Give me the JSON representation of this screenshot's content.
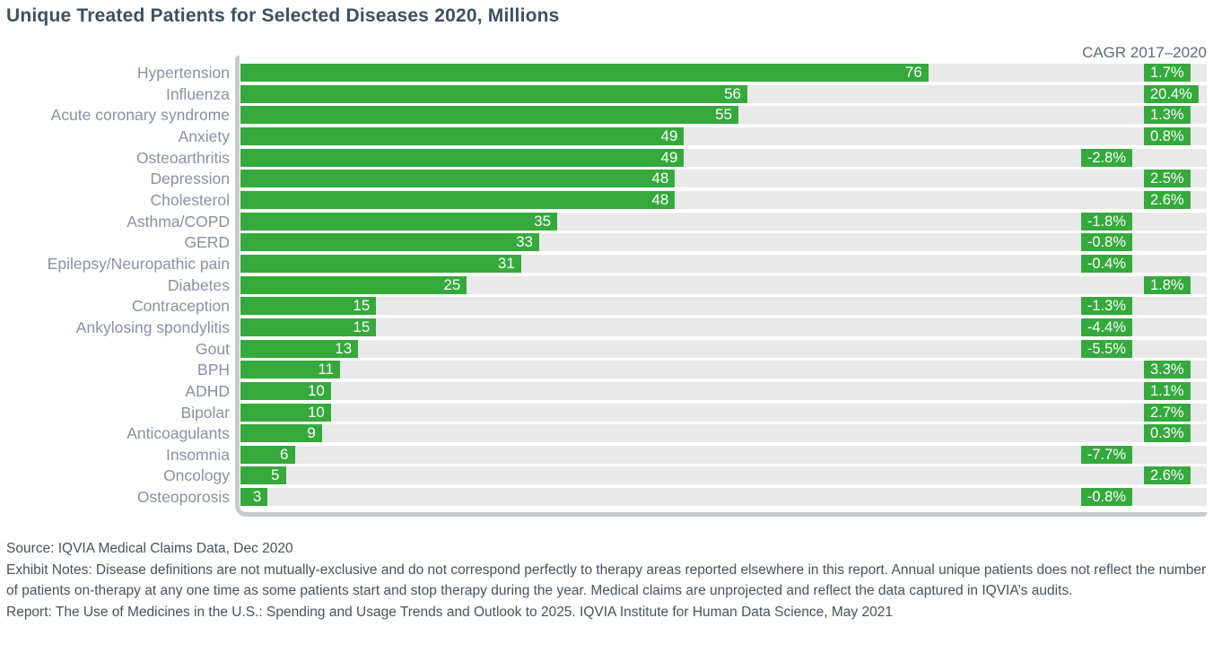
{
  "title": "Unique Treated Patients for Selected Diseases 2020, Millions",
  "cagr_header": "CAGR 2017–2020",
  "colors": {
    "bar_green": "#35a93c",
    "row_stripe": "#e9e9e9",
    "axis_gray": "#c6cacd",
    "label_gray": "#8791a0",
    "title_navy": "#3e4f63",
    "footer_slate": "#46525f"
  },
  "chart_data": {
    "type": "bar",
    "orientation": "horizontal",
    "title": "Unique Treated Patients for Selected Diseases 2020, Millions",
    "value_unit": "millions of unique treated patients, 2020",
    "xlim": [
      0,
      107
    ],
    "grid": false,
    "legend": "none",
    "categories": [
      "Hypertension",
      "Influenza",
      "Acute coronary syndrome",
      "Anxiety",
      "Osteoarthritis",
      "Depression",
      "Cholesterol",
      "Asthma/COPD",
      "GERD",
      "Epilepsy/Neuropathic pain",
      "Diabetes",
      "Contraception",
      "Ankylosing spondylitis",
      "Gout",
      "BPH",
      "ADHD",
      "Bipolar",
      "Anticoagulants",
      "Insomnia",
      "Oncology",
      "Osteoporosis"
    ],
    "values": [
      76,
      56,
      55,
      49,
      49,
      48,
      48,
      35,
      33,
      31,
      25,
      15,
      15,
      13,
      11,
      10,
      10,
      9,
      6,
      5,
      3
    ],
    "series": [
      {
        "name": "Unique treated patients 2020 (millions)",
        "values": [
          76,
          56,
          55,
          49,
          49,
          48,
          48,
          35,
          33,
          31,
          25,
          15,
          15,
          13,
          11,
          10,
          10,
          9,
          6,
          5,
          3
        ]
      },
      {
        "name": "CAGR 2017–2020 (%)",
        "values": [
          1.7,
          20.4,
          1.3,
          0.8,
          -2.8,
          2.5,
          2.6,
          -1.8,
          -0.8,
          -0.4,
          1.8,
          -1.3,
          -4.4,
          -5.5,
          3.3,
          1.1,
          2.7,
          0.3,
          -7.7,
          2.6,
          -0.8
        ]
      }
    ]
  },
  "rows": [
    {
      "label": "Hypertension",
      "value": "76",
      "cagr": 1.7,
      "cagr_display": "1.7%"
    },
    {
      "label": "Influenza",
      "value": "56",
      "cagr": 20.4,
      "cagr_display": "20.4%"
    },
    {
      "label": "Acute coronary syndrome",
      "value": "55",
      "cagr": 1.3,
      "cagr_display": "1.3%"
    },
    {
      "label": "Anxiety",
      "value": "49",
      "cagr": 0.8,
      "cagr_display": "0.8%"
    },
    {
      "label": "Osteoarthritis",
      "value": "49",
      "cagr": -2.8,
      "cagr_display": "-2.8%"
    },
    {
      "label": "Depression",
      "value": "48",
      "cagr": 2.5,
      "cagr_display": "2.5%"
    },
    {
      "label": "Cholesterol",
      "value": "48",
      "cagr": 2.6,
      "cagr_display": "2.6%"
    },
    {
      "label": "Asthma/COPD",
      "value": "35",
      "cagr": -1.8,
      "cagr_display": "-1.8%"
    },
    {
      "label": "GERD",
      "value": "33",
      "cagr": -0.8,
      "cagr_display": "-0.8%"
    },
    {
      "label": "Epilepsy/Neuropathic pain",
      "value": "31",
      "cagr": -0.4,
      "cagr_display": "-0.4%"
    },
    {
      "label": "Diabetes",
      "value": "25",
      "cagr": 1.8,
      "cagr_display": "1.8%"
    },
    {
      "label": "Contraception",
      "value": "15",
      "cagr": -1.3,
      "cagr_display": "-1.3%"
    },
    {
      "label": "Ankylosing spondylitis",
      "value": "15",
      "cagr": -4.4,
      "cagr_display": "-4.4%"
    },
    {
      "label": "Gout",
      "value": "13",
      "cagr": -5.5,
      "cagr_display": "-5.5%"
    },
    {
      "label": "BPH",
      "value": "11",
      "cagr": 3.3,
      "cagr_display": "3.3%"
    },
    {
      "label": "ADHD",
      "value": "10",
      "cagr": 1.1,
      "cagr_display": "1.1%"
    },
    {
      "label": "Bipolar",
      "value": "10",
      "cagr": 2.7,
      "cagr_display": "2.7%"
    },
    {
      "label": "Anticoagulants",
      "value": "9",
      "cagr": 0.3,
      "cagr_display": "0.3%"
    },
    {
      "label": "Insomnia",
      "value": "6",
      "cagr": -7.7,
      "cagr_display": "-7.7%"
    },
    {
      "label": "Oncology",
      "value": "5",
      "cagr": 2.6,
      "cagr_display": "2.6%"
    },
    {
      "label": "Osteoporosis",
      "value": "3",
      "cagr": -0.8,
      "cagr_display": "-0.8%"
    }
  ],
  "footer": {
    "source": "Source: IQVIA Medical Claims Data, Dec 2020",
    "notes": "Exhibit Notes: Disease definitions are not mutually-exclusive and do not correspond perfectly to therapy areas reported elsewhere in this report. Annual unique patients does not reflect the number of patients on-therapy at any one time as some patients start and stop therapy during the year. Medical claims are unprojected and reflect the data captured in IQVIA’s audits.",
    "report": "Report: The Use of Medicines in the U.S.: Spending and Usage Trends and Outlook to 2025. IQVIA Institute for Human Data Science, May 2021"
  }
}
